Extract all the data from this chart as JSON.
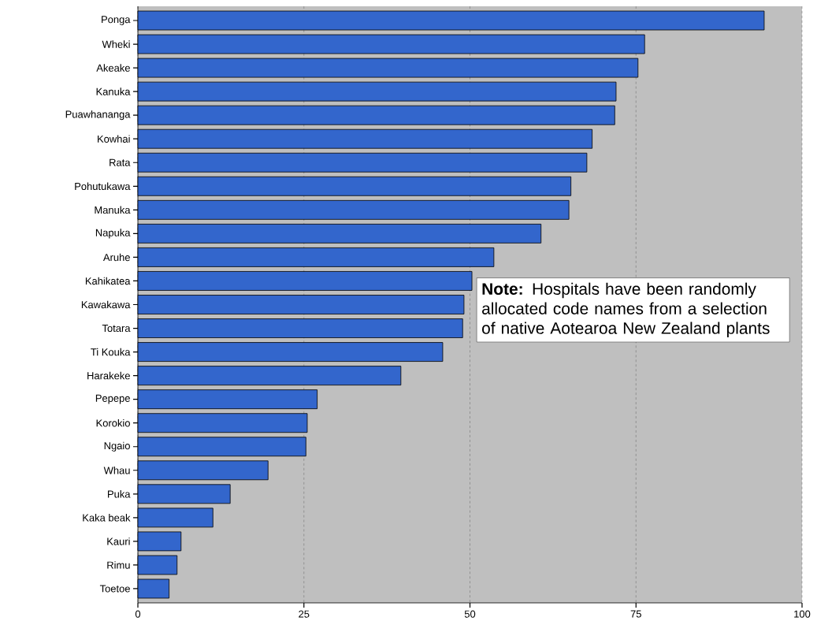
{
  "chart_data": {
    "type": "bar",
    "orientation": "horizontal",
    "categories": [
      "Ponga",
      "Wheki",
      "Akeake",
      "Kanuka",
      "Puawhananga",
      "Kowhai",
      "Rata",
      "Pohutukawa",
      "Manuka",
      "Napuka",
      "Aruhe",
      "Kahikatea",
      "Kawakawa",
      "Totara",
      "Ti Kouka",
      "Harakeke",
      "Pepepe",
      "Korokio",
      "Ngaio",
      "Whau",
      "Puka",
      "Kaka beak",
      "Kauri",
      "Rimu",
      "Toetoe"
    ],
    "values": [
      94.3,
      76.3,
      75.3,
      72.0,
      71.8,
      68.4,
      67.6,
      65.2,
      64.9,
      60.7,
      53.6,
      50.3,
      49.1,
      48.9,
      45.9,
      39.6,
      27.0,
      25.5,
      25.3,
      19.6,
      13.9,
      11.3,
      6.5,
      5.9,
      4.7
    ],
    "color": "#3366cc",
    "xlim": [
      0,
      100
    ],
    "xticks": [
      0,
      25,
      50,
      75,
      100
    ],
    "grid": "x",
    "annotations": [
      "**Note:** Hospitals have been randomly allocated code names from a selection of native Aotearoa New Zealand plants"
    ]
  }
}
